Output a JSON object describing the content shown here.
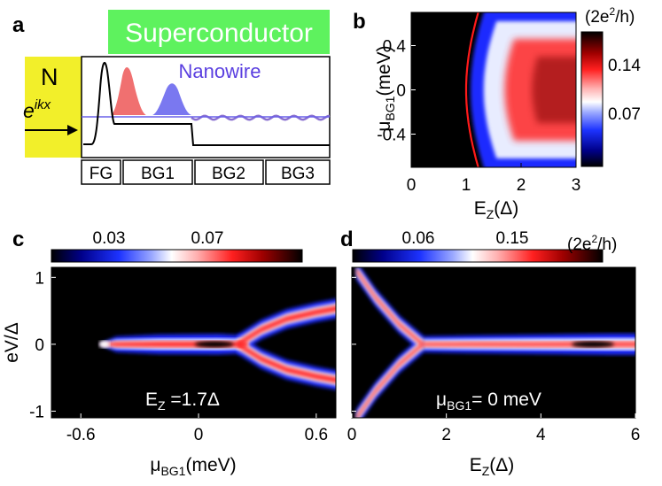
{
  "panels": {
    "a": "a",
    "b": "b",
    "c": "c",
    "d": "d"
  },
  "schematic": {
    "superconductor": "Superconductor",
    "nanowire": "Nanowire",
    "lead": "N",
    "wave_base": "e",
    "wave_exp": "ikx",
    "gates": [
      "FG",
      "BG1",
      "BG2",
      "BG3"
    ],
    "colors": {
      "superconductor": "#5ef25e",
      "lead": "#f2ef2a",
      "red_peak": "#f07070",
      "blue_peak": "#7a78f0"
    }
  },
  "units": {
    "prefix": "(2e",
    "sup": "2",
    "suffix": "/h)"
  },
  "chart_data": [
    {
      "id": "b",
      "type": "heatmap",
      "xlabel_base": "E",
      "xlabel_sub": "Z",
      "xlabel_tail": "(Δ)",
      "ylabel_base": "μ",
      "ylabel_sub": "BG1",
      "ylabel_tail": "(meV)",
      "xlim": [
        0,
        3
      ],
      "ylim": [
        -0.7,
        0.7
      ],
      "xticks": [
        0,
        1,
        2,
        3
      ],
      "yticks": [
        0.4,
        0,
        -0.4
      ],
      "ytick_labels": [
        "0.4",
        "0",
        "-0.4"
      ],
      "colorbar_ticks": [
        "0.14",
        "0.07"
      ],
      "boundary": "E_Z = sqrt(1 + mu^2) Δ (red curve)"
    },
    {
      "id": "c",
      "type": "heatmap",
      "xlabel_base": "μ",
      "xlabel_sub": "BG1",
      "xlabel_tail": "(meV)",
      "ylabel": "eV/Δ",
      "xlim": [
        -0.75,
        0.7
      ],
      "ylim": [
        -1.1,
        1.15
      ],
      "xticks": [
        -0.6,
        0,
        0.6
      ],
      "xtick_labels": [
        "-0.6",
        "0",
        "0.6"
      ],
      "yticks": [
        1,
        0,
        -1
      ],
      "ytick_labels": [
        "1",
        "0",
        "-1"
      ],
      "colorbar_ticks": [
        "0.03",
        "0.07"
      ],
      "annotation_base": "E",
      "annotation_sub": "Z",
      "annotation_tail": " =1.7Δ"
    },
    {
      "id": "d",
      "type": "heatmap",
      "xlabel_base": "E",
      "xlabel_sub": "Z",
      "xlabel_tail": "(Δ)",
      "xlim": [
        0,
        6
      ],
      "ylim": [
        -1.1,
        1.15
      ],
      "xticks": [
        0,
        2,
        4,
        6
      ],
      "xtick_labels": [
        "0",
        "2",
        "4",
        "6"
      ],
      "colorbar_ticks": [
        "0.06",
        "0.15"
      ],
      "annotation_base": "μ",
      "annotation_sub": "BG1",
      "annotation_tail": "= 0 meV"
    }
  ]
}
